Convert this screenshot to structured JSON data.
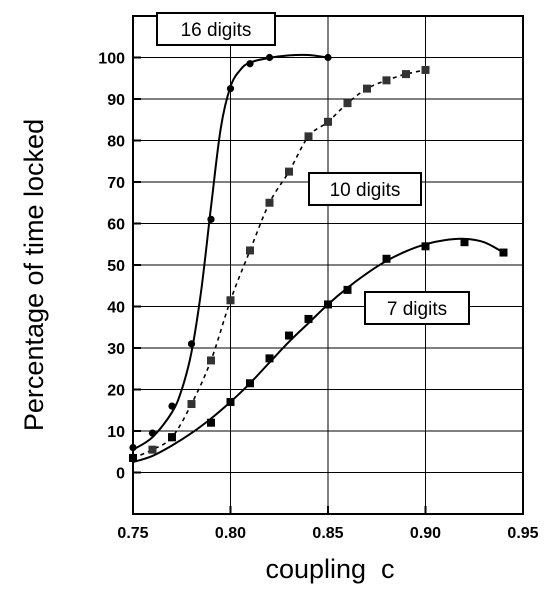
{
  "chart_data": {
    "type": "line",
    "xlabel": "coupling  c",
    "ylabel": "Percentage of time locked",
    "xlim": [
      0.75,
      0.95
    ],
    "ylim": [
      -10,
      110
    ],
    "x_ticks": [
      "0.75",
      "0.80",
      "0.85",
      "0.90",
      "0.95"
    ],
    "y_ticks": [
      "0",
      "10",
      "20",
      "30",
      "40",
      "50",
      "60",
      "70",
      "80",
      "90",
      "100"
    ],
    "grid": true,
    "annotations": [
      "16 digits",
      "10 digits",
      "7 digits"
    ],
    "series": [
      {
        "name": "16 digits",
        "marker": "circle",
        "line": "solid",
        "points": [
          [
            0.75,
            6
          ],
          [
            0.76,
            9.5
          ],
          [
            0.77,
            16
          ],
          [
            0.78,
            31
          ],
          [
            0.79,
            61
          ],
          [
            0.8,
            92.5
          ],
          [
            0.81,
            98.5
          ],
          [
            0.82,
            100
          ],
          [
            0.85,
            100
          ]
        ],
        "curve": [
          [
            0.75,
            5.5
          ],
          [
            0.76,
            8.5
          ],
          [
            0.77,
            14.5
          ],
          [
            0.775,
            20
          ],
          [
            0.78,
            29
          ],
          [
            0.785,
            44
          ],
          [
            0.79,
            64
          ],
          [
            0.795,
            83
          ],
          [
            0.8,
            93
          ],
          [
            0.805,
            97
          ],
          [
            0.81,
            98.8
          ],
          [
            0.82,
            99.9
          ],
          [
            0.83,
            100.5
          ],
          [
            0.84,
            100.6
          ],
          [
            0.85,
            100
          ]
        ]
      },
      {
        "name": "10 digits",
        "marker": "square",
        "line": "dashed",
        "points": [
          [
            0.75,
            3.5
          ],
          [
            0.76,
            5.5
          ],
          [
            0.77,
            8.5
          ],
          [
            0.78,
            16.5
          ],
          [
            0.79,
            27
          ],
          [
            0.8,
            41.5
          ],
          [
            0.81,
            53.5
          ],
          [
            0.82,
            65
          ],
          [
            0.83,
            72.5
          ],
          [
            0.84,
            81
          ],
          [
            0.85,
            84.5
          ],
          [
            0.86,
            89
          ],
          [
            0.87,
            92.5
          ],
          [
            0.88,
            94.5
          ],
          [
            0.89,
            96
          ],
          [
            0.9,
            97
          ]
        ],
        "curve": [
          [
            0.75,
            3.5
          ],
          [
            0.76,
            5.5
          ],
          [
            0.77,
            8.5
          ],
          [
            0.78,
            16.5
          ],
          [
            0.79,
            27
          ],
          [
            0.8,
            41.5
          ],
          [
            0.81,
            53.5
          ],
          [
            0.82,
            65
          ],
          [
            0.83,
            72.5
          ],
          [
            0.84,
            81
          ],
          [
            0.85,
            84.5
          ],
          [
            0.86,
            89
          ],
          [
            0.87,
            92.5
          ],
          [
            0.88,
            94.5
          ],
          [
            0.89,
            96
          ],
          [
            0.9,
            97
          ]
        ]
      },
      {
        "name": "7 digits",
        "marker": "square",
        "line": "solid",
        "points": [
          [
            0.75,
            3.5
          ],
          [
            0.77,
            8.5
          ],
          [
            0.79,
            12
          ],
          [
            0.8,
            17
          ],
          [
            0.81,
            21.5
          ],
          [
            0.82,
            27.5
          ],
          [
            0.83,
            33
          ],
          [
            0.84,
            37
          ],
          [
            0.85,
            40.5
          ],
          [
            0.86,
            44
          ],
          [
            0.88,
            51.5
          ],
          [
            0.9,
            54.5
          ],
          [
            0.92,
            55.5
          ],
          [
            0.94,
            53
          ]
        ],
        "curve": [
          [
            0.75,
            2.5
          ],
          [
            0.76,
            4
          ],
          [
            0.77,
            6.5
          ],
          [
            0.78,
            9.5
          ],
          [
            0.79,
            13
          ],
          [
            0.8,
            17
          ],
          [
            0.81,
            21.5
          ],
          [
            0.82,
            26.5
          ],
          [
            0.83,
            31.5
          ],
          [
            0.84,
            36
          ],
          [
            0.85,
            40.5
          ],
          [
            0.86,
            44.5
          ],
          [
            0.87,
            48
          ],
          [
            0.88,
            51
          ],
          [
            0.89,
            53.3
          ],
          [
            0.9,
            55
          ],
          [
            0.91,
            56
          ],
          [
            0.92,
            56.3
          ],
          [
            0.93,
            55.5
          ],
          [
            0.94,
            53
          ]
        ]
      }
    ]
  }
}
